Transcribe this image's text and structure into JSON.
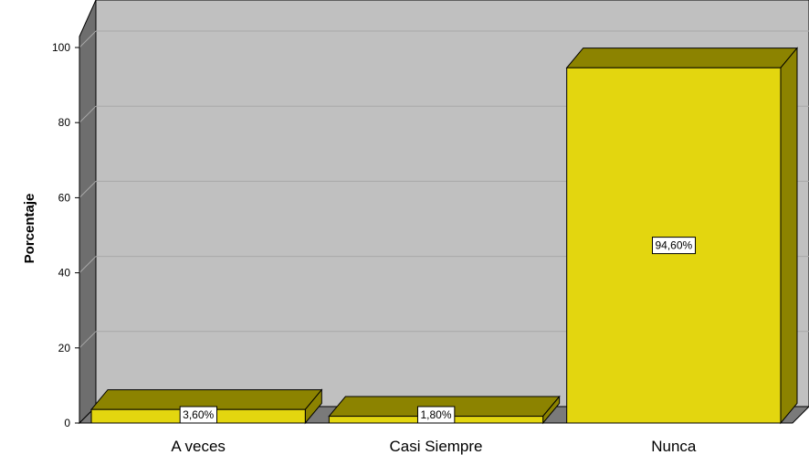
{
  "chart_data": {
    "type": "bar",
    "style": "3d",
    "categories": [
      "A veces",
      "Casi Siempre",
      "Nunca"
    ],
    "values": [
      3.6,
      1.8,
      94.6
    ],
    "data_labels": [
      "3,60%",
      "1,80%",
      "94,60%"
    ],
    "xlabel": "",
    "ylabel": "Porcentaje",
    "ylim": [
      0,
      100
    ],
    "yticks": [
      0,
      20,
      40,
      60,
      80,
      100
    ],
    "grid": true,
    "legend": "none",
    "colors": {
      "bar_front": "#e3d60f",
      "bar_top": "#8c8300",
      "bar_side": "#8c8300",
      "plot_back": "#c0c0c0",
      "wall_side": "#6e6e6e",
      "floor": "#7a7a7a",
      "gridline": "#a8a8a8"
    }
  }
}
